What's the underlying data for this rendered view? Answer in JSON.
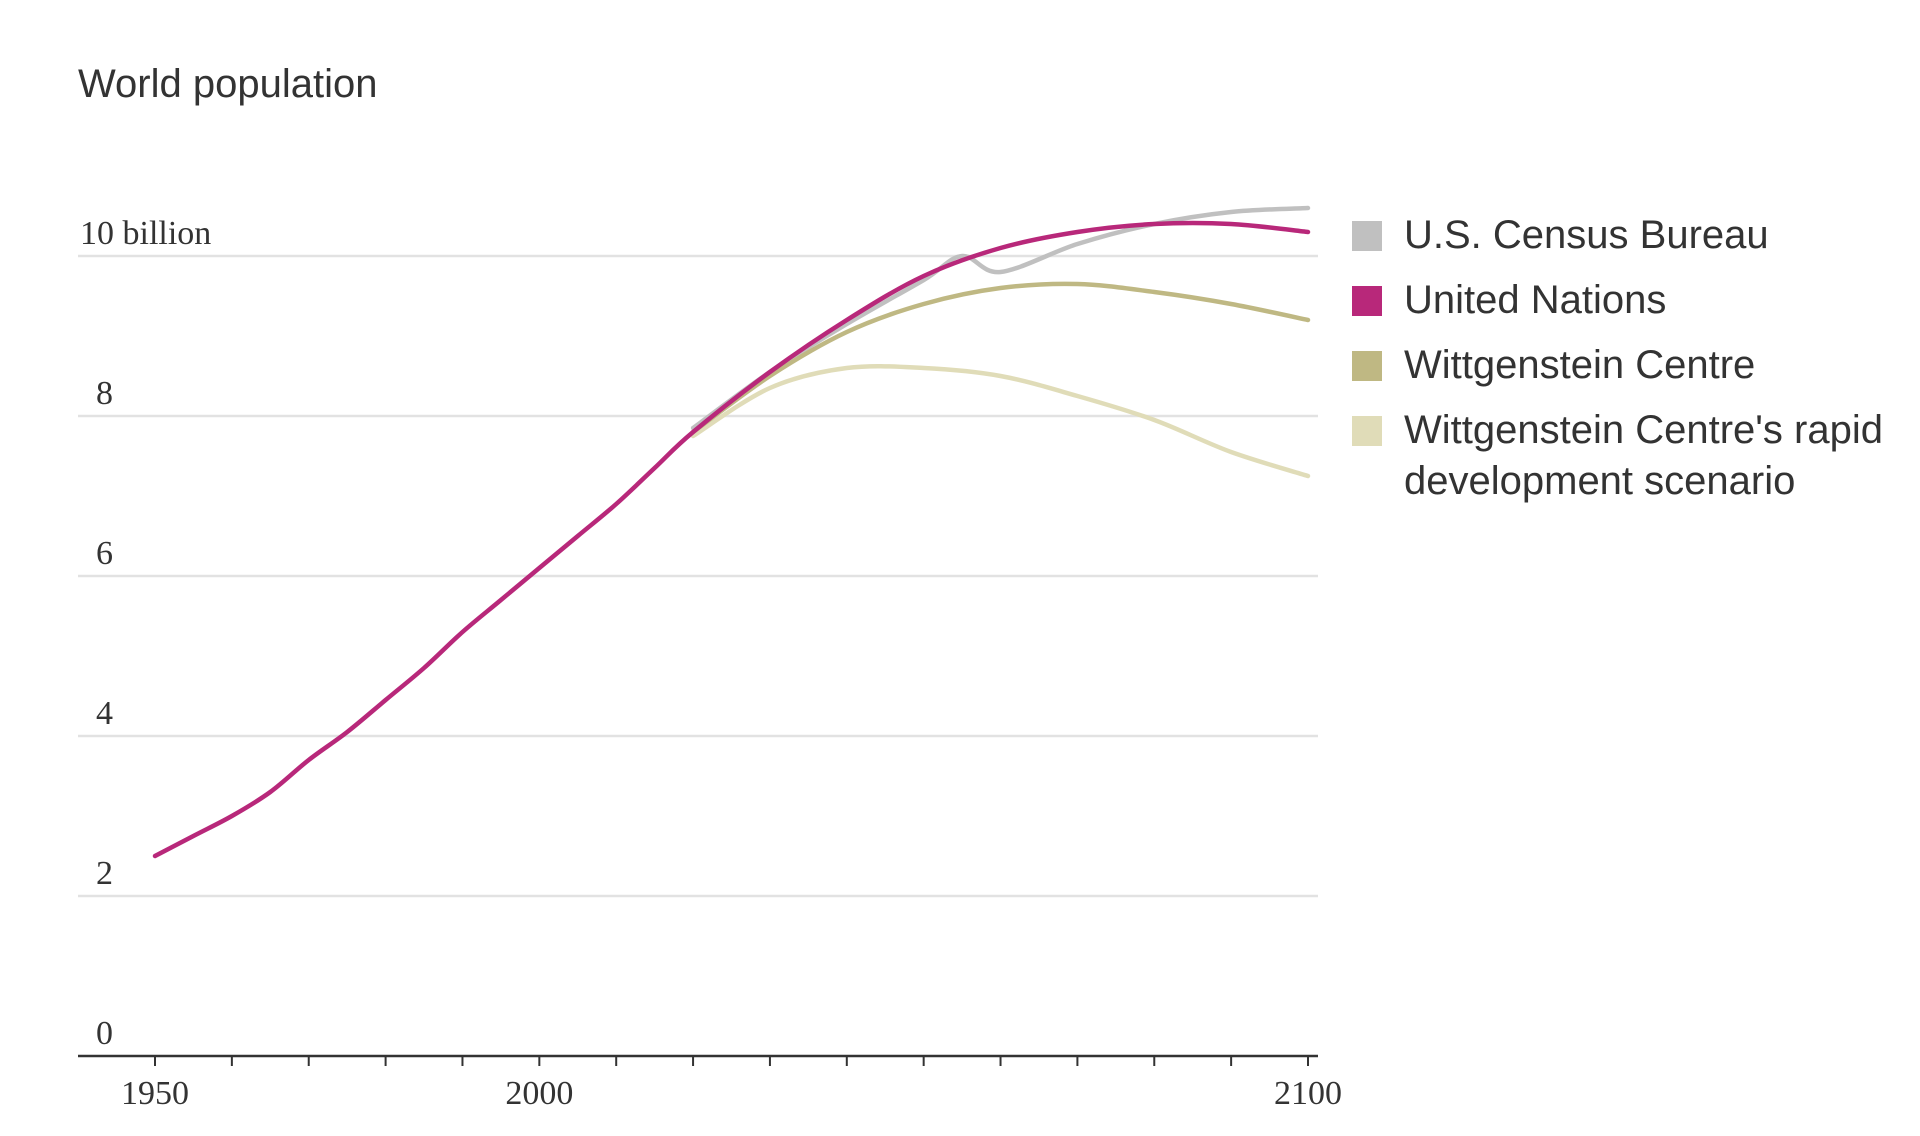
{
  "chart_data": {
    "type": "line",
    "title": "World population",
    "xlabel": "",
    "ylabel": "",
    "xlim": [
      1940,
      2101
    ],
    "ylim": [
      0,
      10.5
    ],
    "x_ticks": [
      1950,
      2000,
      2100
    ],
    "x_ticks_labeled": [
      "1950",
      "2000",
      "2100"
    ],
    "x_minor_ticks": [
      1960,
      1970,
      1980,
      1990,
      2010,
      2020,
      2030,
      2040,
      2050,
      2060,
      2070,
      2080,
      2090
    ],
    "y_ticks": [
      0,
      2,
      4,
      6,
      8,
      10
    ],
    "y_tick_labels": [
      "0",
      "2",
      "4",
      "6",
      "8",
      "10 billion"
    ],
    "grid": true,
    "legend_position": "right",
    "series": [
      {
        "name": "U.S. Census Bureau",
        "color": "#c0c0c0",
        "x": [
          2020,
          2030,
          2040,
          2050,
          2055,
          2060,
          2070,
          2080,
          2090,
          2100
        ],
        "y": [
          7.85,
          8.55,
          9.15,
          9.7,
          10.0,
          9.8,
          10.15,
          10.4,
          10.55,
          10.6
        ]
      },
      {
        "name": "Wittgenstein Centre's rapid development scenario",
        "color": "#e0dcb8",
        "x": [
          2020,
          2030,
          2040,
          2050,
          2060,
          2070,
          2080,
          2090,
          2100
        ],
        "y": [
          7.75,
          8.35,
          8.6,
          8.6,
          8.5,
          8.25,
          7.95,
          7.55,
          7.25
        ]
      },
      {
        "name": "Wittgenstein Centre",
        "color": "#bfb883",
        "x": [
          2020,
          2030,
          2040,
          2050,
          2060,
          2070,
          2080,
          2090,
          2100
        ],
        "y": [
          7.8,
          8.5,
          9.05,
          9.4,
          9.6,
          9.65,
          9.55,
          9.4,
          9.2
        ]
      },
      {
        "name": "United Nations",
        "color": "#b8287a",
        "x": [
          1950,
          1955,
          1960,
          1965,
          1970,
          1975,
          1980,
          1985,
          1990,
          1995,
          2000,
          2005,
          2010,
          2015,
          2020,
          2030,
          2040,
          2050,
          2060,
          2070,
          2080,
          2090,
          2100
        ],
        "y": [
          2.5,
          2.75,
          3.0,
          3.3,
          3.7,
          4.05,
          4.45,
          4.85,
          5.3,
          5.7,
          6.1,
          6.5,
          6.9,
          7.35,
          7.8,
          8.55,
          9.2,
          9.75,
          10.1,
          10.3,
          10.4,
          10.4,
          10.3
        ]
      }
    ],
    "legend": [
      {
        "name": "U.S. Census Bureau",
        "color": "#c0c0c0"
      },
      {
        "name": "United Nations",
        "color": "#b8287a"
      },
      {
        "name": "Wittgenstein Centre",
        "color": "#bfb883"
      },
      {
        "name": "Wittgenstein Centre's rapid development scenario",
        "color": "#e0dcb8"
      }
    ],
    "style": {
      "grid_color": "#e2e2e2",
      "axis_color": "#333333"
    }
  }
}
